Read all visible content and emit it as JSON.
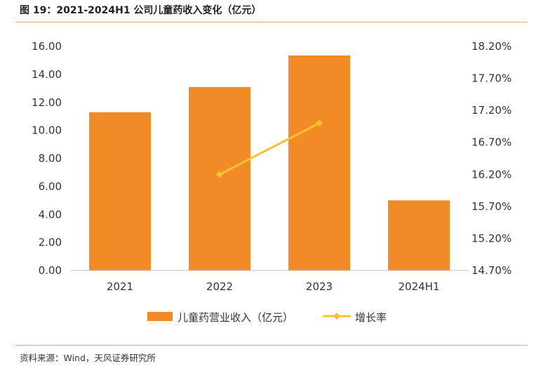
{
  "figure": {
    "title": "图 19：2021-2024H1 公司儿童药收入变化（亿元）",
    "source": "资料来源：Wind，天风证券研究所"
  },
  "chart_data": {
    "type": "bar",
    "title": "图 19：2021-2024H1 公司儿童药收入变化（亿元）",
    "categories": [
      "2021",
      "2022",
      "2023",
      "2024H1"
    ],
    "series": [
      {
        "name": "儿童药营业收入（亿元）",
        "type": "bar",
        "axis": "left",
        "color": "#f28a26",
        "values": [
          11.3,
          13.1,
          15.35,
          5.0
        ]
      },
      {
        "name": "增长率",
        "type": "line",
        "axis": "right",
        "color": "#f5c232",
        "values": [
          null,
          0.162,
          0.17,
          null
        ]
      }
    ],
    "left_axis": {
      "ylim": [
        0,
        16
      ],
      "ticks": [
        0,
        2,
        4,
        6,
        8,
        10,
        12,
        14,
        16
      ],
      "tick_labels": [
        "0.00",
        "2.00",
        "4.00",
        "6.00",
        "8.00",
        "10.00",
        "12.00",
        "14.00",
        "16.00"
      ]
    },
    "right_axis": {
      "ylim": [
        0.147,
        0.182
      ],
      "ticks": [
        0.147,
        0.152,
        0.157,
        0.162,
        0.167,
        0.172,
        0.177,
        0.182
      ],
      "tick_labels": [
        "14.70%",
        "15.20%",
        "15.70%",
        "16.20%",
        "16.70%",
        "17.20%",
        "17.70%",
        "18.20%"
      ]
    },
    "grid": false,
    "legend": "bottom"
  }
}
